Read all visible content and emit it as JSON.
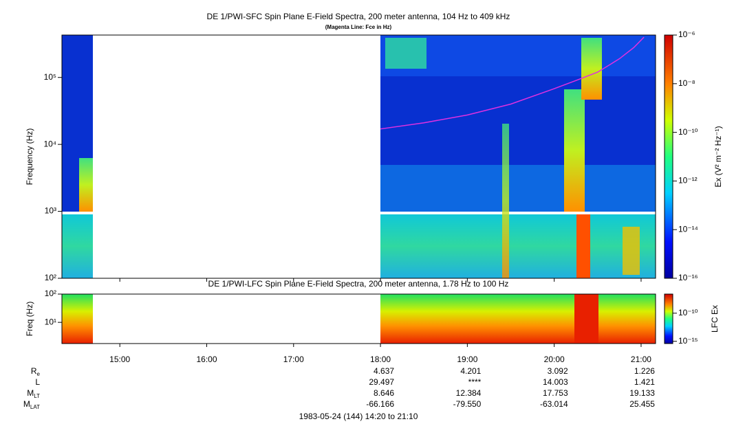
{
  "chart_data": [
    {
      "type": "spectrogram",
      "title": "DE 1/PWI-SFC  Spin Plane E-Field Spectra, 200 meter antenna, 104 Hz to 409 kHz",
      "subtitle": "(Magenta Line: Fce in Hz)",
      "ylabel": "Frequency (Hz)",
      "xlim": [
        860,
        1270
      ],
      "ylim": [
        100,
        430000
      ],
      "log_y": true,
      "yticks": [
        {
          "value": 100,
          "label": "10²"
        },
        {
          "value": 1000,
          "label": "10³"
        },
        {
          "value": 10000,
          "label": "10⁴"
        },
        {
          "value": 100000,
          "label": "10⁵"
        }
      ],
      "colorbar": {
        "label": "Ex (V² m⁻² Hz⁻¹)",
        "lim": [
          1e-16,
          1e-06
        ],
        "ticks": [
          {
            "value": 1e-16,
            "label": "10⁻¹⁶"
          },
          {
            "value": 1e-14,
            "label": "10⁻¹⁴"
          },
          {
            "value": 1e-12,
            "label": "10⁻¹²"
          },
          {
            "value": 1e-10,
            "label": "10⁻¹⁰"
          },
          {
            "value": 1e-08,
            "label": "10⁻⁸"
          },
          {
            "value": 1e-06,
            "label": "10⁻⁶"
          }
        ]
      },
      "series": [
        {
          "color": "#e030e0",
          "x": [
            1080,
            1110,
            1140,
            1170,
            1200,
            1215,
            1230,
            1245,
            1255,
            1262
          ],
          "values": [
            17000,
            21000,
            27500,
            40000,
            68000,
            90000,
            120000,
            190000,
            280000,
            400000
          ]
        }
      ]
    },
    {
      "type": "spectrogram",
      "title": "DE 1/PWI-LFC  Spin Plane E-Field Spectra, 200 meter antenna, 1.78 Hz to 100 Hz",
      "ylabel": "Freq (Hz)",
      "xlim": [
        860,
        1270
      ],
      "xticks": [
        {
          "value": 900,
          "label": "15:00"
        },
        {
          "value": 960,
          "label": "16:00"
        },
        {
          "value": 1020,
          "label": "17:00"
        },
        {
          "value": 1080,
          "label": "18:00"
        },
        {
          "value": 1140,
          "label": "19:00"
        },
        {
          "value": 1200,
          "label": "20:00"
        },
        {
          "value": 1260,
          "label": "21:00"
        }
      ],
      "ylim": [
        1.78,
        100
      ],
      "log_y": true,
      "yticks": [
        {
          "value": 10,
          "label": "10¹"
        },
        {
          "value": 100,
          "label": "10²"
        }
      ],
      "colorbar": {
        "label": "LFC Ex",
        "lim": [
          4e-16,
          2.5e-07
        ],
        "ticks": [
          {
            "value": 1e-15,
            "label": "10⁻¹⁵"
          },
          {
            "value": 1e-10,
            "label": "10⁻¹⁰"
          }
        ]
      }
    }
  ],
  "ephemeris": {
    "x": [
      1080,
      1140,
      1200,
      1260
    ],
    "rows": [
      {
        "label": "R",
        "sub": "e",
        "values": [
          "4.637",
          "4.201",
          "3.092",
          "1.226"
        ]
      },
      {
        "label": "L",
        "values": [
          "29.497",
          "****",
          "14.003",
          "1.421"
        ]
      },
      {
        "label": "M",
        "sub": "LT",
        "values": [
          "8.646",
          "12.384",
          "17.753",
          "19.133"
        ]
      },
      {
        "label": "M",
        "sub": "LAT",
        "values": [
          "-66.166",
          "-79.550",
          "-63.014",
          "25.455"
        ]
      }
    ]
  },
  "footer": "1983-05-24 (144) 14:20 to 21:10"
}
